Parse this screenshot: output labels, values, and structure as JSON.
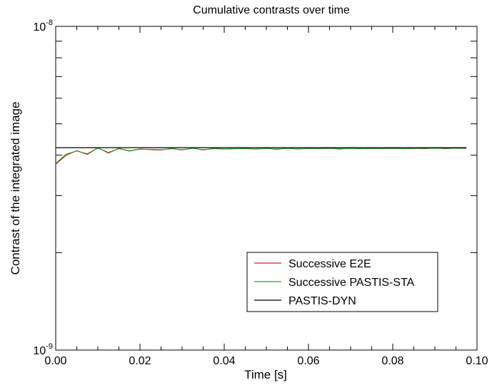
{
  "chart_data": {
    "type": "line",
    "title": "Cumulative contrasts over time",
    "xlabel": "Time [s]",
    "ylabel": "Contrast of the integrated image",
    "xlim": [
      0.0,
      0.1
    ],
    "ylim": [
      1e-09,
      1e-08
    ],
    "yscale": "log",
    "x_ticks": [
      0.0,
      0.02,
      0.04,
      0.06,
      0.08,
      0.1
    ],
    "x_tick_labels": [
      "0.00",
      "0.02",
      "0.04",
      "0.06",
      "0.08",
      "0.10"
    ],
    "y_tick_labels": [
      {
        "value": 1e-09,
        "base": "10",
        "exp": "-9"
      },
      {
        "value": 1e-08,
        "base": "10",
        "exp": "-8"
      }
    ],
    "grid": false,
    "legend_position": "bottom-right",
    "series": [
      {
        "name": "Successive E2E",
        "color": "#d62020",
        "x": [
          0.0,
          0.0025,
          0.005,
          0.0075,
          0.01,
          0.0125,
          0.015,
          0.0175,
          0.02,
          0.0225,
          0.025,
          0.0275,
          0.03,
          0.0325,
          0.035,
          0.0375,
          0.04,
          0.0425,
          0.045,
          0.0475,
          0.05,
          0.0525,
          0.055,
          0.0575,
          0.06,
          0.0625,
          0.065,
          0.0675,
          0.07,
          0.0725,
          0.075,
          0.0775,
          0.08,
          0.0825,
          0.085,
          0.0875,
          0.09,
          0.0925,
          0.095,
          0.0975
        ],
        "y": [
          3.75e-09,
          4e-09,
          4.13e-09,
          4.02e-09,
          4.22e-09,
          4.06e-09,
          4.2e-09,
          4.12e-09,
          4.18e-09,
          4.16e-09,
          4.15e-09,
          4.2e-09,
          4.15e-09,
          4.21e-09,
          4.15e-09,
          4.2e-09,
          4.18e-09,
          4.19e-09,
          4.2e-09,
          4.18e-09,
          4.2e-09,
          4.17e-09,
          4.21e-09,
          4.18e-09,
          4.2e-09,
          4.19e-09,
          4.2e-09,
          4.18e-09,
          4.21e-09,
          4.19e-09,
          4.2e-09,
          4.19e-09,
          4.2e-09,
          4.19e-09,
          4.2e-09,
          4.19e-09,
          4.21e-09,
          4.19e-09,
          4.21e-09,
          4.2e-09
        ]
      },
      {
        "name": "Successive PASTIS-STA",
        "color": "#22a030",
        "x": [
          0.0,
          0.0025,
          0.005,
          0.0075,
          0.01,
          0.0125,
          0.015,
          0.0175,
          0.02,
          0.0225,
          0.025,
          0.0275,
          0.03,
          0.0325,
          0.035,
          0.0375,
          0.04,
          0.0425,
          0.045,
          0.0475,
          0.05,
          0.0525,
          0.055,
          0.0575,
          0.06,
          0.0625,
          0.065,
          0.0675,
          0.07,
          0.0725,
          0.075,
          0.0775,
          0.08,
          0.0825,
          0.085,
          0.0875,
          0.09,
          0.0925,
          0.095,
          0.0975
        ],
        "y": [
          3.77e-09,
          4.03e-09,
          4.12e-09,
          4.04e-09,
          4.21e-09,
          4.08e-09,
          4.19e-09,
          4.13e-09,
          4.17e-09,
          4.17e-09,
          4.16e-09,
          4.19e-09,
          4.16e-09,
          4.2e-09,
          4.16e-09,
          4.19e-09,
          4.18e-09,
          4.19e-09,
          4.19e-09,
          4.18e-09,
          4.2e-09,
          4.18e-09,
          4.2e-09,
          4.18e-09,
          4.2e-09,
          4.19e-09,
          4.2e-09,
          4.19e-09,
          4.2e-09,
          4.19e-09,
          4.2e-09,
          4.19e-09,
          4.2e-09,
          4.19e-09,
          4.2e-09,
          4.2e-09,
          4.2e-09,
          4.2e-09,
          4.2e-09,
          4.2e-09
        ]
      },
      {
        "name": "PASTIS-DYN",
        "color": "#000000",
        "x": [
          0.0,
          0.0975
        ],
        "y": [
          4.22e-09,
          4.22e-09
        ]
      }
    ]
  }
}
